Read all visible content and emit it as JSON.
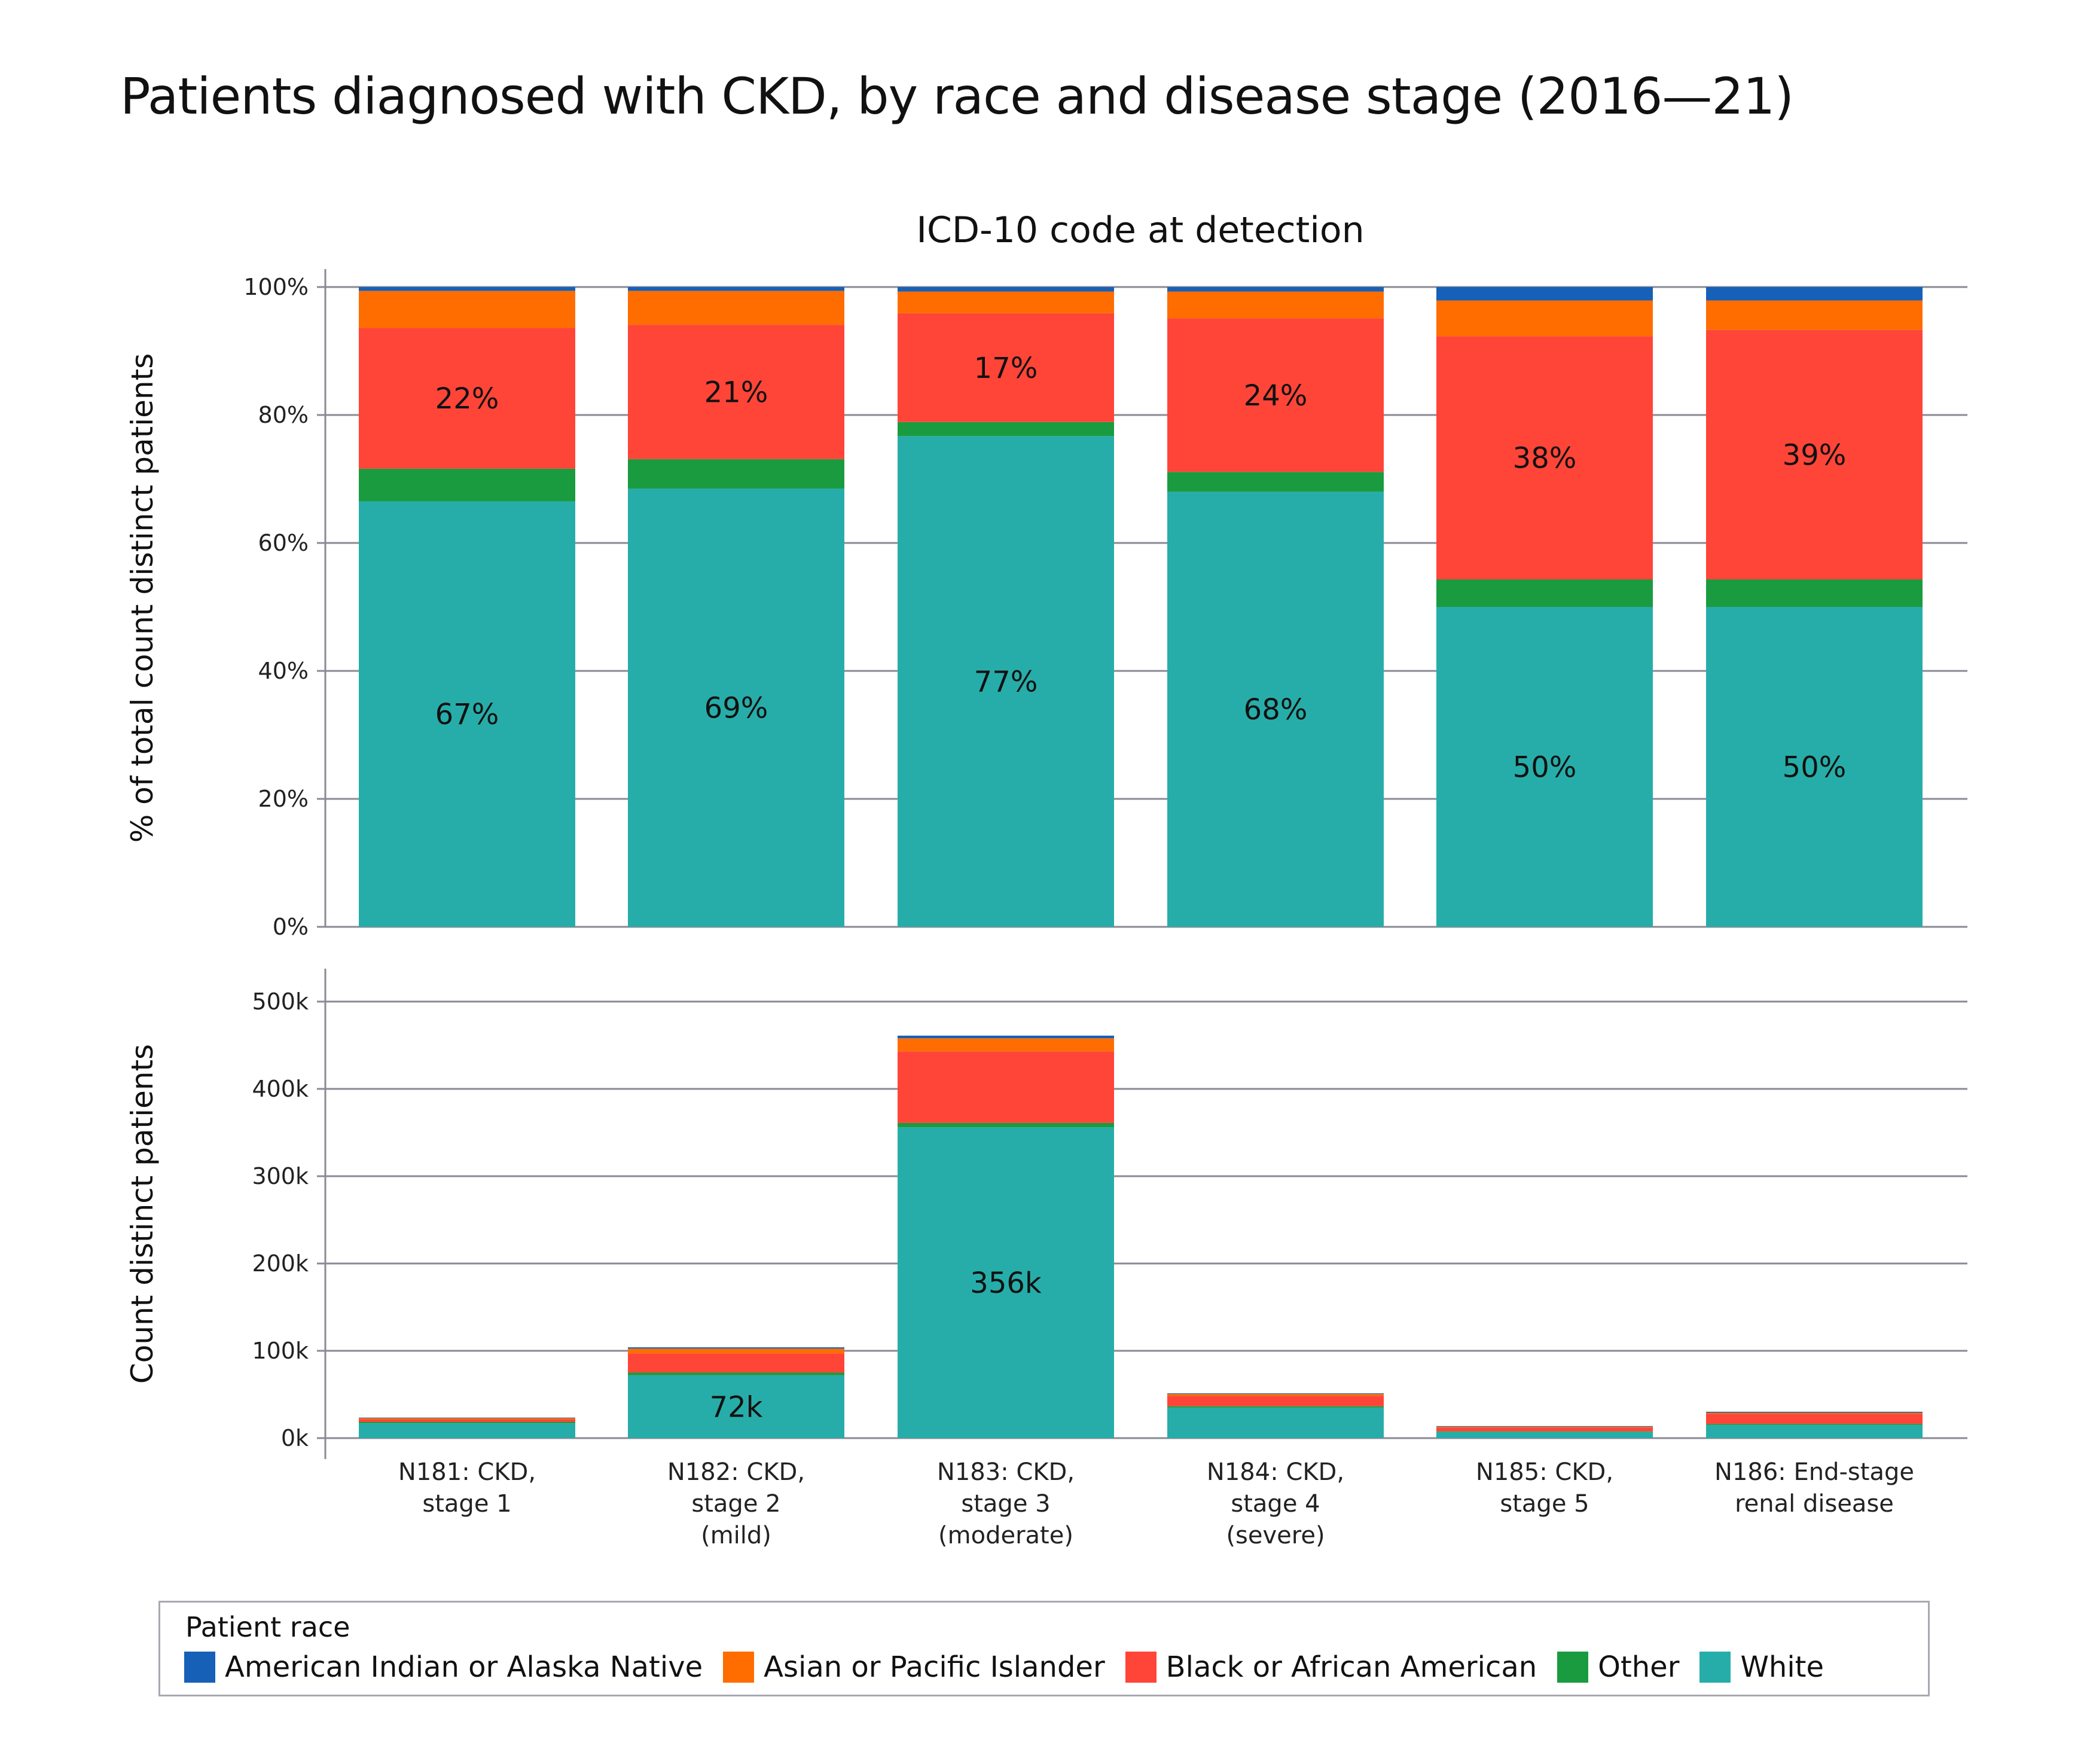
{
  "title": "Patients diagnosed with CKD, by race and disease stage (2016—21)",
  "chart_data": [
    {
      "type": "bar",
      "stacked": true,
      "title": "ICD-10 code at detection",
      "xlabel": "",
      "ylabel": "% of total count distinct patients",
      "ylim": [
        0,
        100
      ],
      "yticks": [
        "0%",
        "20%",
        "40%",
        "60%",
        "80%",
        "100%"
      ],
      "ytick_values": [
        0,
        20,
        40,
        60,
        80,
        100
      ],
      "grid": true,
      "categories": [
        "N181: CKD, stage 1",
        "N182: CKD, stage 2 (mild)",
        "N183: CKD, stage 3 (moderate)",
        "N184: CKD, stage 4 (severe)",
        "N185: CKD, stage 5",
        "N186: End-stage renal disease"
      ],
      "series": [
        {
          "name": "White",
          "color": "#27ADA9",
          "values": [
            66.5,
            68.5,
            76.7,
            68.0,
            50.0,
            50.0
          ]
        },
        {
          "name": "Other",
          "color": "#1A9B40",
          "values": [
            5.1,
            4.6,
            2.2,
            3.1,
            4.3,
            4.3
          ]
        },
        {
          "name": "Black or African American",
          "color": "#FF4538",
          "values": [
            22.0,
            21.0,
            17.0,
            24.0,
            38.0,
            39.0
          ]
        },
        {
          "name": "Asian or Pacific Islander",
          "color": "#FF6D00",
          "values": [
            5.8,
            5.3,
            3.4,
            4.2,
            5.6,
            4.6
          ]
        },
        {
          "name": "American Indian or Alaska Native",
          "color": "#1660B8",
          "values": [
            0.6,
            0.6,
            0.7,
            0.7,
            2.1,
            2.1
          ]
        }
      ],
      "data_labels": [
        {
          "series": "White",
          "labels": [
            "67%",
            "69%",
            "77%",
            "68%",
            "50%",
            "50%"
          ]
        },
        {
          "series": "Black or African American",
          "labels": [
            "22%",
            "21%",
            "17%",
            "24%",
            "38%",
            "39%"
          ]
        }
      ]
    },
    {
      "type": "bar",
      "stacked": true,
      "title": "",
      "xlabel": "",
      "ylabel": "Count distinct patients",
      "ylim": [
        0,
        500000
      ],
      "yticks": [
        "0k",
        "100k",
        "200k",
        "300k",
        "400k",
        "500k"
      ],
      "ytick_values": [
        0,
        100000,
        200000,
        300000,
        400000,
        500000
      ],
      "grid": true,
      "categories": [
        "N181: CKD, stage 1",
        "N182: CKD, stage 2 (mild)",
        "N183: CKD, stage 3 (moderate)",
        "N184: CKD, stage 4 (severe)",
        "N185: CKD, stage 5",
        "N186: End-stage renal disease"
      ],
      "category_lines": [
        [
          "N181: CKD,",
          "stage 1"
        ],
        [
          "N182: CKD,",
          "stage 2",
          "(mild)"
        ],
        [
          "N183: CKD,",
          "stage 3",
          "(moderate)"
        ],
        [
          "N184: CKD,",
          "stage 4",
          "(severe)"
        ],
        [
          "N185: CKD,",
          "stage 5"
        ],
        [
          "N186: End-stage",
          "renal disease"
        ]
      ],
      "series": [
        {
          "name": "White",
          "color": "#27ADA9",
          "values": [
            17000,
            72000,
            356000,
            35000,
            7000,
            15000
          ]
        },
        {
          "name": "Other",
          "color": "#1A9B40",
          "values": [
            1500,
            3000,
            5000,
            1500,
            700,
            1300
          ]
        },
        {
          "name": "Black or African American",
          "color": "#FF4538",
          "values": [
            3000,
            22000,
            82000,
            12000,
            4500,
            11500
          ]
        },
        {
          "name": "Asian or Pacific Islander",
          "color": "#FF6D00",
          "values": [
            1400,
            5500,
            15000,
            2000,
            900,
            1300
          ]
        },
        {
          "name": "American Indian or Alaska Native",
          "color": "#1660B8",
          "values": [
            600,
            1500,
            3000,
            800,
            700,
            1100
          ]
        }
      ],
      "data_labels": [
        {
          "series": "White",
          "labels": [
            "",
            "72k",
            "356k",
            "",
            "",
            ""
          ]
        }
      ]
    }
  ],
  "legend": {
    "title": "Patient race",
    "placement": "bottom",
    "items": [
      {
        "label": "American Indian or Alaska Native",
        "color": "#1660B8"
      },
      {
        "label": "Asian or Pacific Islander",
        "color": "#FF6D00"
      },
      {
        "label": "Black or African American",
        "color": "#FF4538"
      },
      {
        "label": "Other",
        "color": "#1A9B40"
      },
      {
        "label": "White",
        "color": "#27ADA9"
      }
    ]
  }
}
